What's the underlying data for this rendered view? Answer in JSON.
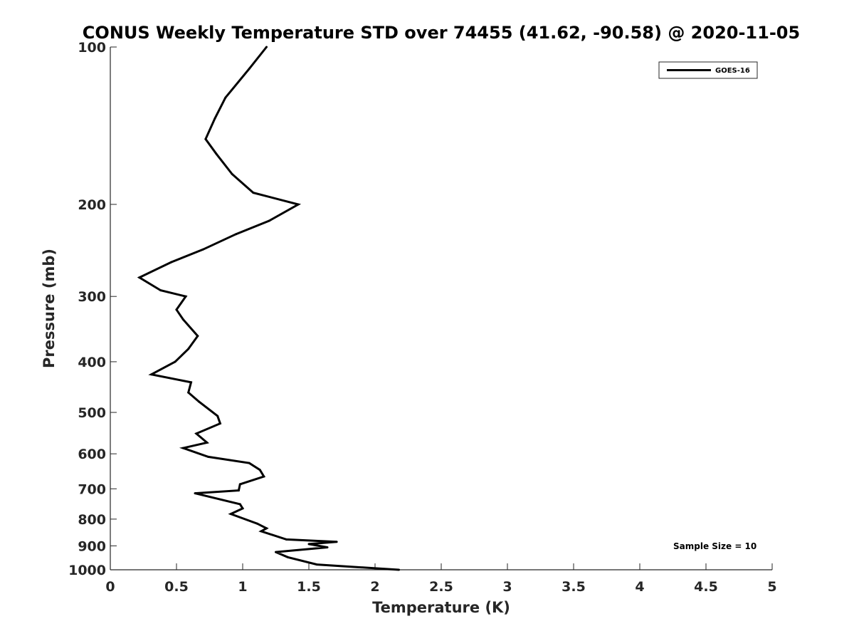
{
  "chart_data": {
    "type": "line",
    "title": "CONUS Weekly Temperature STD over 74455 (41.62, -90.58) @ 2020-11-05",
    "xlabel": "Temperature (K)",
    "ylabel": "Pressure (mb)",
    "xlim": [
      0,
      5
    ],
    "ylim": [
      100,
      1000
    ],
    "y_scale": "log",
    "y_reversed": true,
    "grid": false,
    "legend_position": "top-right",
    "x_ticks": [
      0,
      0.5,
      1,
      1.5,
      2,
      2.5,
      3,
      3.5,
      4,
      4.5,
      5
    ],
    "x_tick_labels": [
      "0",
      "0.5",
      "1",
      "1.5",
      "2",
      "2.5",
      "3",
      "3.5",
      "4",
      "4.5",
      "5"
    ],
    "y_ticks": [
      100,
      200,
      300,
      400,
      500,
      600,
      700,
      800,
      900,
      1000
    ],
    "y_tick_labels": [
      "100",
      "200",
      "300",
      "400",
      "500",
      "600",
      "700",
      "800",
      "900",
      "1000"
    ],
    "annotation": "Sample Size = 10",
    "series": [
      {
        "name": "GOES-16",
        "color": "#000000",
        "temperature": [
          1.18,
          1.05,
          0.87,
          0.79,
          0.72,
          0.8,
          0.92,
          1.08,
          1.42,
          1.2,
          0.95,
          0.7,
          0.46,
          0.22,
          0.38,
          0.57,
          0.5,
          0.55,
          0.66,
          0.59,
          0.49,
          0.31,
          0.61,
          0.59,
          0.67,
          0.81,
          0.83,
          0.65,
          0.73,
          0.55,
          0.74,
          1.05,
          1.13,
          1.16,
          0.98,
          0.97,
          0.64,
          0.98,
          1.0,
          0.91,
          1.11,
          1.18,
          1.14,
          1.33,
          1.71,
          1.5,
          1.64,
          1.25,
          1.34,
          1.56,
          2.18
        ],
        "pressure": [
          100,
          110,
          125,
          137,
          150,
          160,
          175,
          190,
          200,
          215,
          228,
          244,
          258,
          276,
          292,
          300,
          318,
          332,
          357,
          378,
          400,
          423,
          438,
          458,
          477,
          508,
          525,
          549,
          571,
          585,
          608,
          625,
          644,
          663,
          686,
          705,
          714,
          749,
          763,
          782,
          816,
          833,
          844,
          875,
          884,
          893,
          906,
          925,
          946,
          977,
          1000
        ]
      }
    ]
  }
}
